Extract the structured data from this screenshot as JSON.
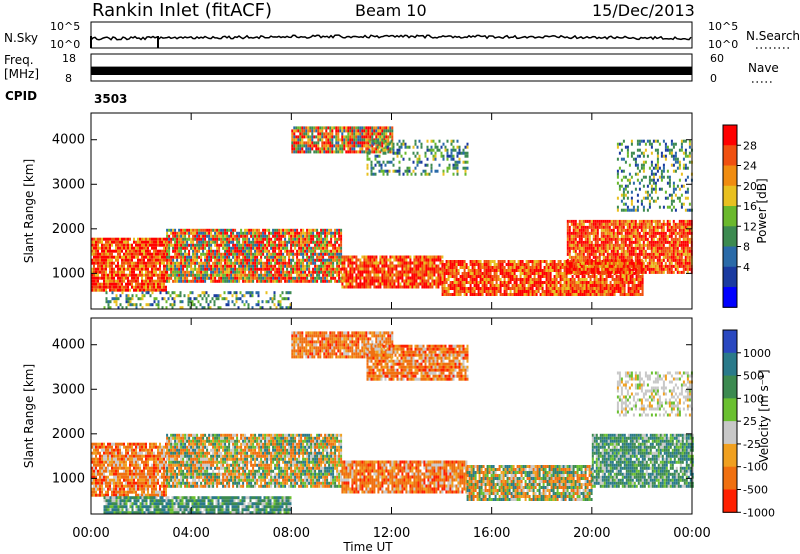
{
  "header": {
    "title": "Rankin Inlet (fitACF)",
    "beam": "Beam 10",
    "date": "15/Dec/2013"
  },
  "strips": {
    "nsky_label": "N.Sky",
    "nsky_ticks": [
      "10^5",
      "10^0"
    ],
    "nsearch_label": "N.Search",
    "nsearch_ticks": [
      "10^5",
      "10^0"
    ],
    "freq_label_1": "Freq.",
    "freq_label_2": "[MHz]",
    "freq_ticks": [
      "18",
      "8"
    ],
    "nave_label": "Nave",
    "nave_ticks": [
      "60",
      "0"
    ],
    "cpid_label": "CPID",
    "cpid_value": "3503"
  },
  "chart_data": [
    {
      "type": "heatmap",
      "name": "power-rti",
      "ylabel": "Slant Range [km]",
      "xlabel": "Time UT",
      "xlim_hours": [
        0,
        24
      ],
      "ylim": [
        200,
        4600
      ],
      "x_ticks": [
        "00:00",
        "04:00",
        "08:00",
        "12:00",
        "16:00",
        "20:00",
        "00:00"
      ],
      "y_ticks": [
        1000,
        2000,
        3000,
        4000
      ],
      "colorbar": {
        "label": "Power [dB]",
        "ticks": [
          "28",
          "24",
          "20",
          "16",
          "12",
          "8",
          "4"
        ],
        "colors": [
          "#0000ff",
          "#1a3aa0",
          "#2a6aa8",
          "#3c8a50",
          "#6ab82c",
          "#e8c020",
          "#f08c10",
          "#f05010",
          "#ff0000"
        ]
      },
      "regions": [
        {
          "t": [
            0.0,
            3.0
          ],
          "r": [
            600,
            1800
          ],
          "level": "high"
        },
        {
          "t": [
            3.0,
            10.0
          ],
          "r": [
            800,
            2000
          ],
          "level": "mixed"
        },
        {
          "t": [
            10.0,
            14.0
          ],
          "r": [
            700,
            1400
          ],
          "level": "high"
        },
        {
          "t": [
            14.0,
            22.0
          ],
          "r": [
            500,
            1300
          ],
          "level": "high"
        },
        {
          "t": [
            19.0,
            24.0
          ],
          "r": [
            1000,
            2200
          ],
          "level": "high"
        },
        {
          "t": [
            8.0,
            12.0
          ],
          "r": [
            3700,
            4300
          ],
          "level": "mixed"
        },
        {
          "t": [
            11.0,
            15.0
          ],
          "r": [
            3200,
            4000
          ],
          "level": "low"
        },
        {
          "t": [
            0.5,
            8.0
          ],
          "r": [
            200,
            600
          ],
          "level": "low"
        },
        {
          "t": [
            21.0,
            24.0
          ],
          "r": [
            2400,
            4000
          ],
          "level": "low"
        }
      ]
    },
    {
      "type": "heatmap",
      "name": "velocity-rti",
      "ylabel": "Slant Range [km]",
      "xlabel": "Time UT",
      "xlim_hours": [
        0,
        24
      ],
      "ylim": [
        200,
        4600
      ],
      "x_ticks": [
        "00:00",
        "04:00",
        "08:00",
        "12:00",
        "16:00",
        "20:00",
        "00:00"
      ],
      "y_ticks": [
        1000,
        2000,
        3000,
        4000
      ],
      "colorbar": {
        "label": "Velocity [m s⁻¹]",
        "ticks": [
          "1000",
          "500",
          "100",
          "25",
          "-25",
          "-100",
          "-500",
          "-1000"
        ],
        "colors": [
          "#2a48c0",
          "#2a7a8a",
          "#3c8a50",
          "#6ac030",
          "#c8c8c8",
          "#f0a020",
          "#f07010",
          "#ff2000"
        ]
      },
      "regions": [
        {
          "t": [
            0.0,
            3.0
          ],
          "r": [
            600,
            1800
          ],
          "level": "neg"
        },
        {
          "t": [
            3.0,
            10.0
          ],
          "r": [
            800,
            2000
          ],
          "level": "mixed"
        },
        {
          "t": [
            10.0,
            15.0
          ],
          "r": [
            700,
            1400
          ],
          "level": "neg"
        },
        {
          "t": [
            15.0,
            20.0
          ],
          "r": [
            500,
            1300
          ],
          "level": "mixed"
        },
        {
          "t": [
            20.0,
            24.0
          ],
          "r": [
            800,
            2000
          ],
          "level": "pos"
        },
        {
          "t": [
            8.0,
            12.0
          ],
          "r": [
            3700,
            4300
          ],
          "level": "neg"
        },
        {
          "t": [
            11.0,
            15.0
          ],
          "r": [
            3200,
            4000
          ],
          "level": "neg"
        },
        {
          "t": [
            0.5,
            8.0
          ],
          "r": [
            200,
            600
          ],
          "level": "pos"
        },
        {
          "t": [
            21.0,
            24.0
          ],
          "r": [
            2400,
            3400
          ],
          "level": "zero"
        }
      ]
    }
  ]
}
